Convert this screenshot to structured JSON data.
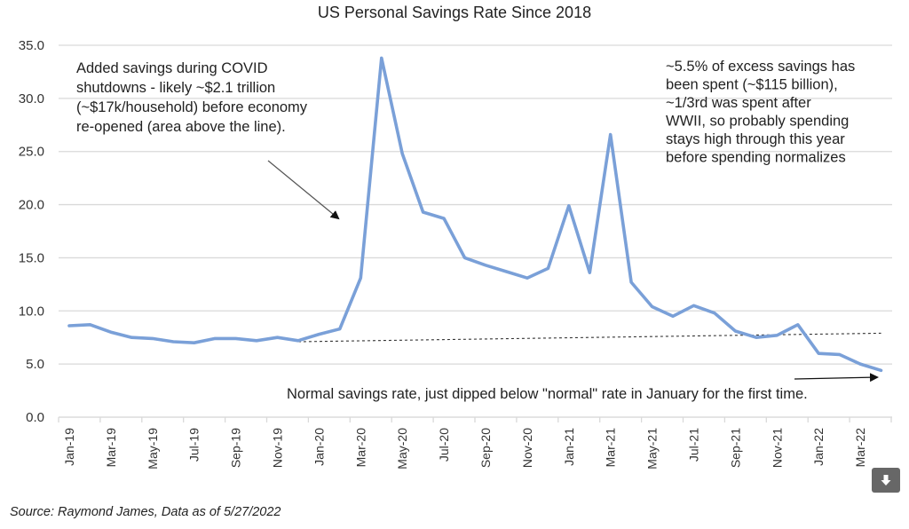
{
  "chart_data": {
    "type": "line",
    "title": "US Personal Savings Rate Since 2018",
    "xlabel": "",
    "ylabel": "",
    "ylim": [
      0,
      35
    ],
    "yticks": [
      "0.0",
      "5.0",
      "10.0",
      "15.0",
      "20.0",
      "25.0",
      "30.0",
      "35.0"
    ],
    "grid": true,
    "categories": [
      "Jan-19",
      "Feb-19",
      "Mar-19",
      "Apr-19",
      "May-19",
      "Jun-19",
      "Jul-19",
      "Aug-19",
      "Sep-19",
      "Oct-19",
      "Nov-19",
      "Dec-19",
      "Jan-20",
      "Feb-20",
      "Mar-20",
      "Apr-20",
      "May-20",
      "Jun-20",
      "Jul-20",
      "Aug-20",
      "Sep-20",
      "Oct-20",
      "Nov-20",
      "Dec-20",
      "Jan-21",
      "Feb-21",
      "Mar-21",
      "Apr-21",
      "May-21",
      "Jun-21",
      "Jul-21",
      "Aug-21",
      "Sep-21",
      "Oct-21",
      "Nov-21",
      "Dec-21",
      "Jan-22",
      "Feb-22",
      "Mar-22",
      "Apr-22"
    ],
    "xtick_labels": [
      "Jan-19",
      "Mar-19",
      "May-19",
      "Jul-19",
      "Sep-19",
      "Nov-19",
      "Jan-20",
      "Mar-20",
      "May-20",
      "Jul-20",
      "Sep-20",
      "Nov-20",
      "Jan-21",
      "Mar-21",
      "May-21",
      "Jul-21",
      "Sep-21",
      "Nov-21",
      "Jan-22",
      "Mar-22"
    ],
    "series": [
      {
        "name": "Personal Savings Rate",
        "color": "#7aa0d8",
        "values": [
          8.6,
          8.7,
          8.0,
          7.5,
          7.4,
          7.1,
          7.0,
          7.4,
          7.4,
          7.2,
          7.5,
          7.2,
          7.8,
          8.3,
          13.1,
          33.8,
          24.8,
          19.3,
          18.7,
          15.0,
          14.3,
          13.7,
          13.1,
          14.0,
          19.9,
          13.6,
          26.6,
          12.7,
          10.4,
          9.5,
          10.5,
          9.8,
          8.1,
          7.5,
          7.7,
          8.7,
          6.0,
          5.9,
          5.0,
          4.4
        ]
      },
      {
        "name": "Normal savings rate trend",
        "style": "dotted",
        "color": "#333333",
        "start": {
          "category": "Dec-19",
          "value": 7.1
        },
        "end": {
          "category": "Apr-22",
          "value": 7.9
        }
      }
    ],
    "annotations": [
      {
        "id": "covid",
        "lines": [
          "Added savings during COVID",
          "shutdowns - likely ~$2.1 trillion",
          "(~$17k/household) before economy",
          "re-opened (area above the line)."
        ]
      },
      {
        "id": "spent",
        "lines": [
          "~5.5% of excess savings has",
          "been spent (~$115 billion),",
          "~1/3rd was spent after",
          "WWII, so probably spending",
          "stays high through this year",
          "before spending normalizes"
        ]
      },
      {
        "id": "normal",
        "lines": [
          "Normal savings rate, just dipped below \"normal\" rate in January for the first time."
        ]
      }
    ]
  },
  "source": "Source: Raymond James, Data as of 5/27/2022",
  "download_button": {
    "icon": "download-arrow-icon"
  }
}
